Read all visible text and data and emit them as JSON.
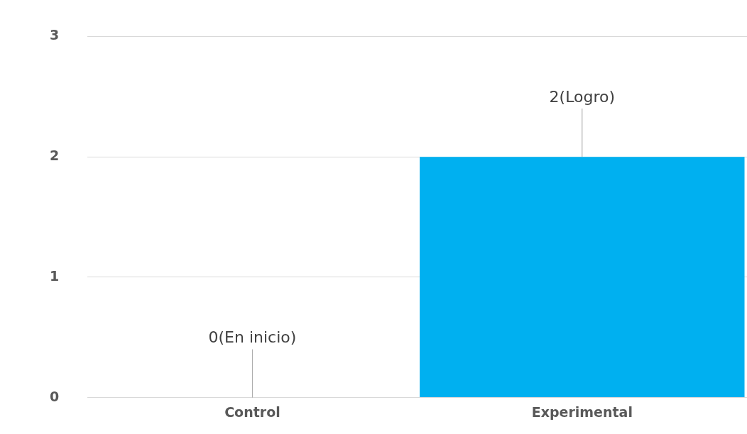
{
  "chart_data": {
    "type": "bar",
    "categories": [
      "Control",
      "Experimental"
    ],
    "values": [
      0,
      2
    ],
    "color": "#00b0f0",
    "value_labels": [
      "0(En inicio)",
      "2(Logro)"
    ],
    "ylim": [
      0,
      3
    ],
    "yticks": [
      0,
      1,
      2,
      3
    ],
    "grid": "y",
    "legend": false
  }
}
